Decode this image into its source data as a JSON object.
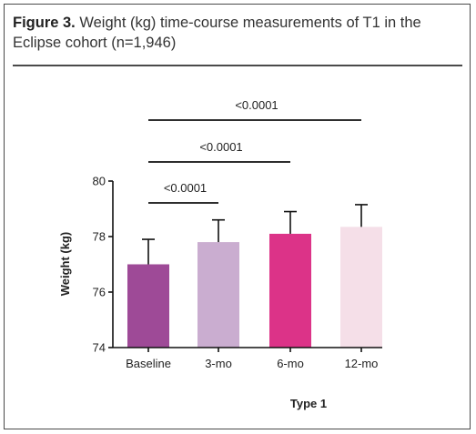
{
  "caption": {
    "label": "Figure 3.",
    "text": " Weight (kg) time-course measurements of T1 in the Eclipse cohort (n=1,946)"
  },
  "chart_data": {
    "type": "bar",
    "categories": [
      "Baseline",
      "3-mo",
      "6-mo",
      "12-mo"
    ],
    "values": [
      77.0,
      77.8,
      78.1,
      78.35
    ],
    "error_upper": [
      77.9,
      78.6,
      78.9,
      79.15
    ],
    "colors": [
      "#9e4a97",
      "#caadd0",
      "#dc3388",
      "#f5dfe8"
    ],
    "xlabel": "Type 1",
    "ylabel": "Weight (kg)",
    "ylim": [
      74,
      80
    ],
    "yticks": [
      74,
      76,
      78,
      80
    ],
    "comparisons": [
      {
        "from": "Baseline",
        "to": "3-mo",
        "label": "<0.0001"
      },
      {
        "from": "Baseline",
        "to": "6-mo",
        "label": "<0.0001"
      },
      {
        "from": "Baseline",
        "to": "12-mo",
        "label": "<0.0001"
      }
    ]
  }
}
